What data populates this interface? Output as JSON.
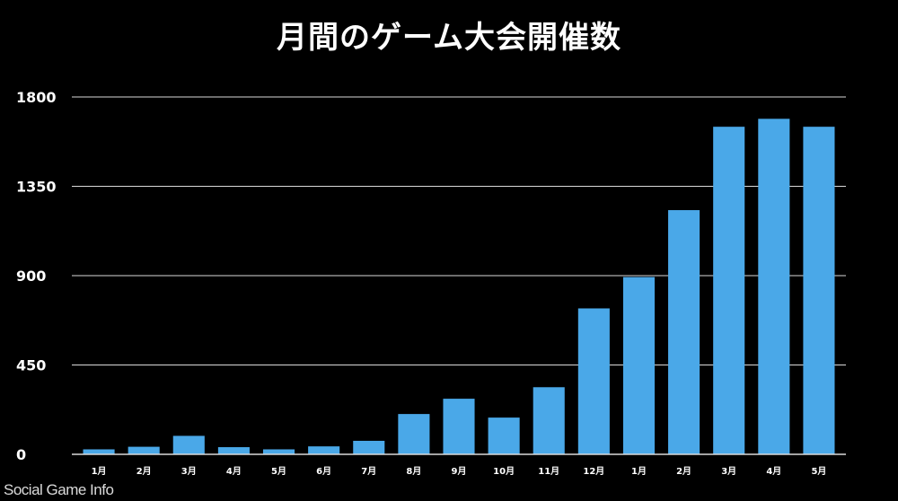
{
  "chart_data": {
    "type": "bar",
    "title": "月間のゲーム大会開催数",
    "categories": [
      "1月",
      "2月",
      "3月",
      "4月",
      "5月",
      "6月",
      "7月",
      "8月",
      "9月",
      "10月",
      "11月",
      "12月",
      "1月",
      "2月",
      "3月",
      "4月",
      "5月"
    ],
    "values": [
      25,
      38,
      93,
      36,
      25,
      40,
      68,
      203,
      280,
      185,
      338,
      735,
      893,
      1230,
      1650,
      1690,
      1650
    ],
    "ylim": [
      0,
      1800
    ],
    "yticks": [
      0,
      450,
      900,
      1350,
      1800
    ],
    "grid": true,
    "xlabel": "",
    "ylabel": "",
    "colors": {
      "background": "#000000",
      "bar": "#4aa8e8",
      "grid": "#d9d9d9",
      "text": "#ffffff"
    }
  },
  "watermark": "Social Game Info"
}
